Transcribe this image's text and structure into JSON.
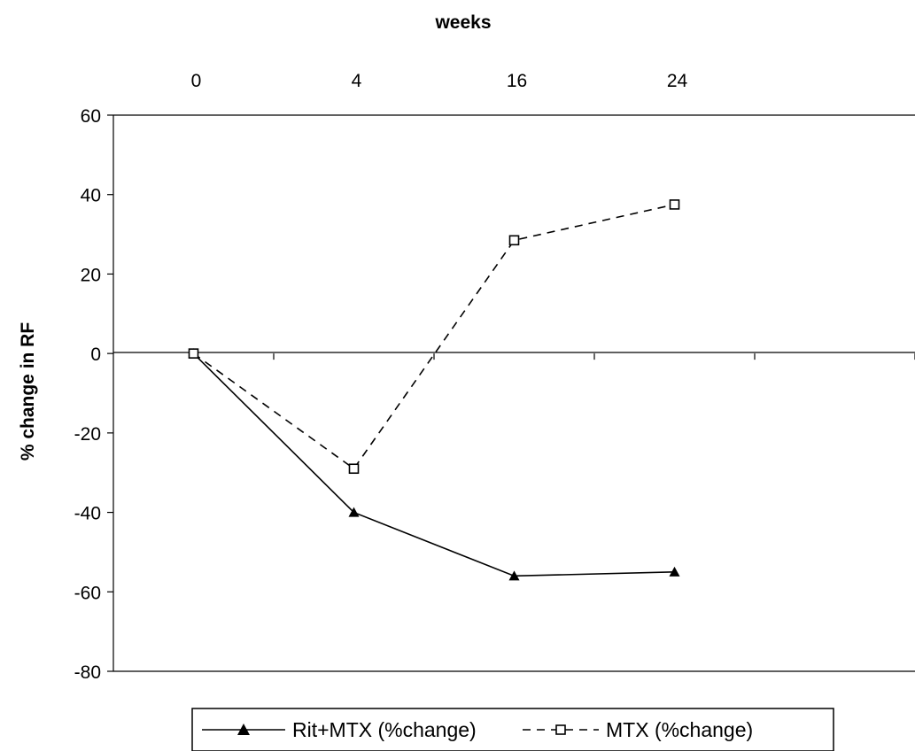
{
  "chart_data": {
    "type": "line",
    "x_axis_title": "weeks",
    "y_axis_title": "% change in RF",
    "categories": [
      "0",
      "4",
      "16",
      "24"
    ],
    "y_ticks": [
      60,
      40,
      20,
      0,
      -20,
      -40,
      -60,
      -80
    ],
    "ylim": [
      -80,
      60
    ],
    "x_axis_position": "top",
    "grid": false,
    "legend_position": "bottom",
    "series": [
      {
        "name": "Rit+MTX (%change)",
        "values": [
          0,
          -40,
          -56,
          -55
        ],
        "line_style": "solid",
        "marker": "filled-triangle",
        "color": "#000000"
      },
      {
        "name": "MTX (%change)",
        "values": [
          0,
          -29,
          28.5,
          37.5
        ],
        "line_style": "dashed",
        "marker": "open-square",
        "color": "#000000"
      }
    ]
  }
}
